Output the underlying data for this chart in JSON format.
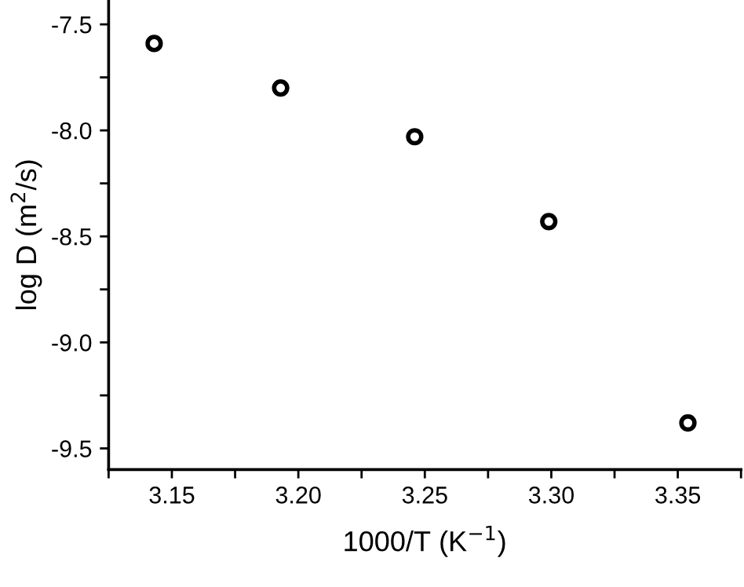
{
  "chart_data": {
    "type": "scatter",
    "xlabel": "1000/T (K$^{−1}$)",
    "ylabel": "log D (m$^{2}$/s)",
    "x": [
      3.143,
      3.193,
      3.246,
      3.299,
      3.354
    ],
    "series": [
      {
        "color": "#000000",
        "values": [
          -7.59,
          -7.8,
          -8.03,
          -8.43,
          -9.38
        ]
      }
    ],
    "marker": "circle",
    "xlim": [
      3.125,
      3.375
    ],
    "ylim": [
      -9.6,
      -7.385
    ],
    "xticks": [
      {
        "value": 3.125,
        "label": null
      },
      3.15,
      {
        "value": 3.175,
        "label": null
      },
      {
        "value": 3.2,
        "label": "3.20"
      },
      {
        "value": 3.225,
        "label": null
      },
      3.25,
      {
        "value": 3.275,
        "label": null
      },
      {
        "value": 3.3,
        "label": "3.30"
      },
      {
        "value": 3.325,
        "label": null
      },
      3.35,
      {
        "value": 3.375,
        "label": null
      }
    ],
    "yticks": [
      -9.5,
      {
        "value": -9.25,
        "label": null
      },
      {
        "value": -9.0,
        "label": "-9.0"
      },
      {
        "value": -8.75,
        "label": null
      },
      -8.5,
      {
        "value": -8.25,
        "label": null
      },
      {
        "value": -8.0,
        "label": "-8.0"
      },
      {
        "value": -7.75,
        "label": null
      },
      -7.5
    ],
    "grid": false
  }
}
